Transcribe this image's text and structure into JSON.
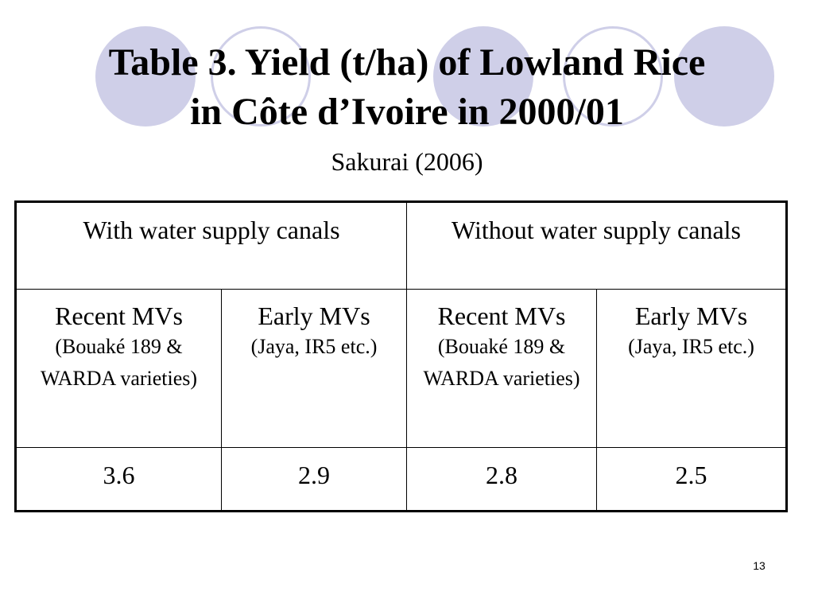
{
  "slide": {
    "title_line1": "Table 3.  Yield (t/ha) of Lowland Rice",
    "title_line2": "in Côte d’Ivoire in 2000/01",
    "subtitle": "Sakurai (2006)",
    "page_number": "13"
  },
  "table": {
    "groups": [
      "With water supply canals",
      "Without water supply canals"
    ],
    "varieties": [
      {
        "name": "Recent MVs",
        "detail": "(Bouaké 189 & WARDA varieties)"
      },
      {
        "name": "Early MVs",
        "detail": "(Jaya, IR5 etc.)"
      },
      {
        "name": "Recent MVs",
        "detail": "(Bouaké 189 & WARDA varieties)"
      },
      {
        "name": "Early MVs",
        "detail": "(Jaya, IR5 etc.)"
      }
    ],
    "values": [
      "3.6",
      "2.9",
      "2.8",
      "2.5"
    ]
  },
  "colors": {
    "decor_circle": "#cfcfe8"
  }
}
